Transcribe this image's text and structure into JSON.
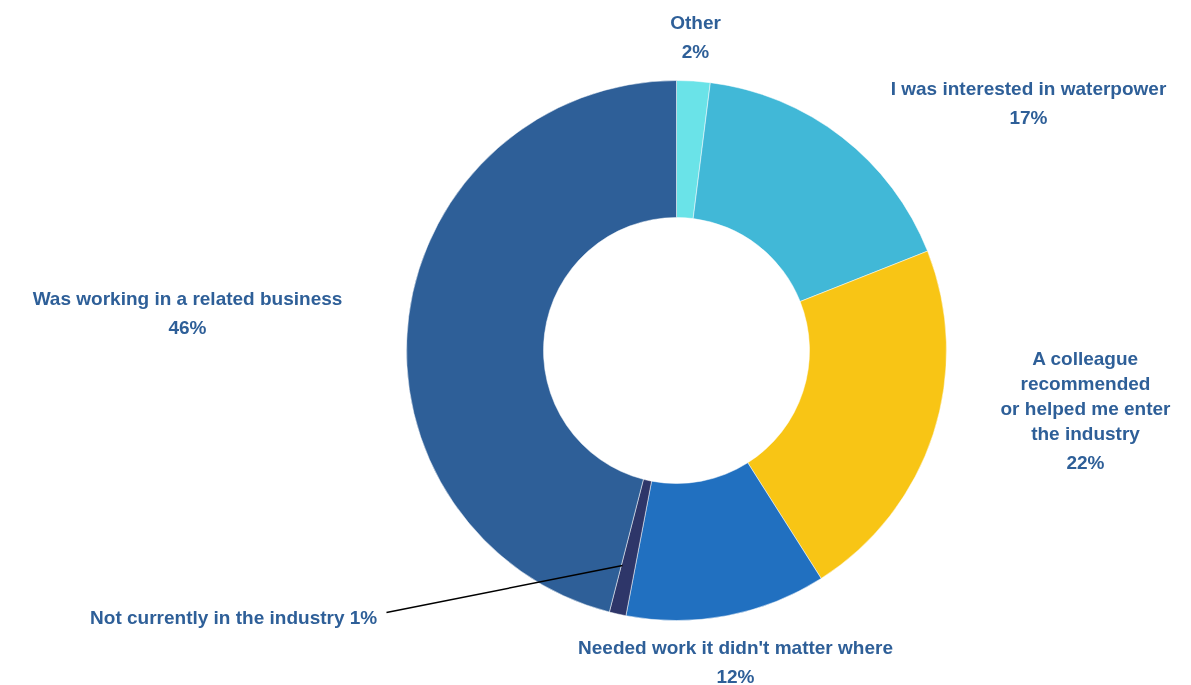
{
  "chart_data": {
    "type": "donut",
    "categories": [
      "Other",
      "I was interested in waterpower",
      "A colleague\nrecommended\nor helped me enter\nthe industry",
      "Needed work it didn't matter where",
      "Not currently in the industry",
      "Was working in a related business"
    ],
    "values": [
      2,
      17,
      22,
      12,
      1,
      46
    ],
    "colors": [
      "#6ae3e8",
      "#41b8d7",
      "#f8c515",
      "#2170c0",
      "#2e3669",
      "#2e5f98"
    ],
    "value_labels": [
      "2%",
      "17%",
      "22%",
      "12%",
      "1%",
      "46%"
    ]
  }
}
